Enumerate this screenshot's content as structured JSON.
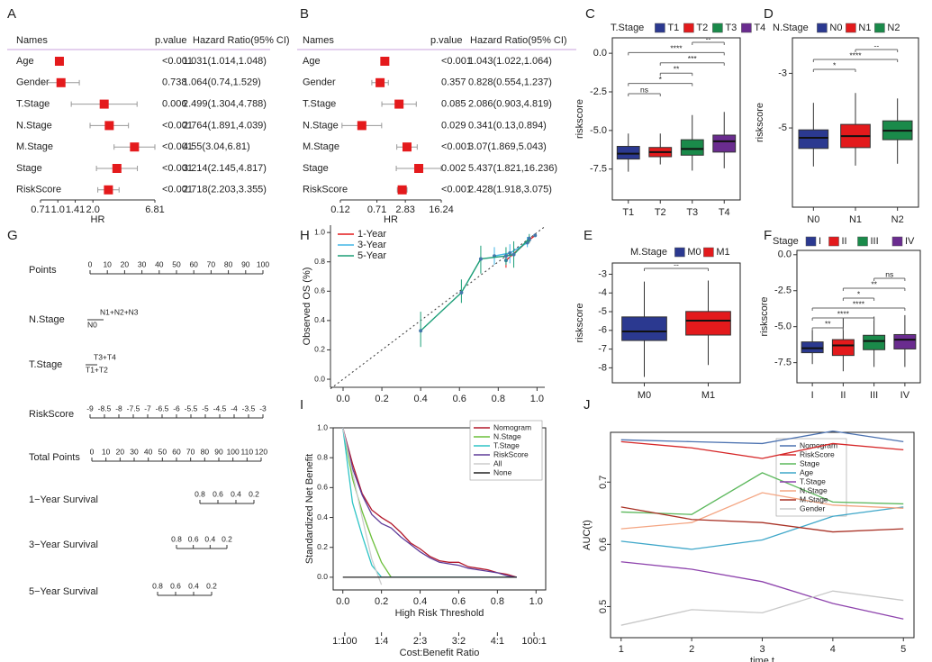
{
  "chart_data": [
    {
      "type": "forest",
      "panel": "A",
      "headers": [
        "Names",
        "p.value",
        "Hazard Ratio(95% CI)"
      ],
      "categories": [
        "Age",
        "Gender",
        "T.Stage",
        "N.Stage",
        "M.Stage",
        "Stage",
        "RiskScore"
      ],
      "p_values": [
        "<0.001",
        "0.738",
        "0.006",
        "<0.001",
        "<0.001",
        "<0.001",
        "<0.001"
      ],
      "values": [
        1.031,
        1.064,
        2.499,
        2.764,
        4.55,
        3.214,
        2.718
      ],
      "lower": [
        1.014,
        0.74,
        1.304,
        1.891,
        3.04,
        2.145,
        2.203
      ],
      "upper": [
        1.048,
        1.529,
        4.788,
        4.039,
        6.81,
        4.817,
        3.355
      ],
      "value_labels": [
        "1.031(1.014,1.048)",
        "1.064(0.74,1.529)",
        "2.499(1.304,4.788)",
        "2.764(1.891,4.039)",
        "4.55(3.04,6.81)",
        "3.214(2.145,4.817)",
        "2.718(2.203,3.355)"
      ],
      "xlabel": "HR",
      "log_x": true,
      "xlim": [
        0.71,
        6.81
      ],
      "xticks": [
        0.71,
        {
          "value": 1,
          "label": "1.0"
        },
        1.41,
        {
          "value": 2,
          "label": "2.0"
        },
        6.81
      ],
      "color": "#e41a1c"
    },
    {
      "type": "forest",
      "panel": "B",
      "headers": [
        "Names",
        "p.value",
        "Hazard Ratio(95% CI)"
      ],
      "categories": [
        "Age",
        "Gender",
        "T.Stage",
        "N.Stage",
        "M.Stage",
        "Stage",
        "RiskScore"
      ],
      "p_values": [
        "<0.001",
        "0.357",
        "0.085",
        "0.029",
        "<0.001",
        "0.002",
        "<0.001"
      ],
      "values": [
        1.043,
        0.828,
        2.086,
        0.341,
        3.07,
        5.437,
        2.428
      ],
      "lower": [
        1.022,
        0.554,
        0.903,
        0.13,
        1.869,
        1.821,
        1.918
      ],
      "upper": [
        1.064,
        1.237,
        4.819,
        0.894,
        5.043,
        16.236,
        3.075
      ],
      "value_labels": [
        "1.043(1.022,1.064)",
        "0.828(0.554,1.237)",
        "2.086(0.903,4.819)",
        "0.341(0.13,0.894)",
        "3.07(1.869,5.043)",
        "5.437(1.821,16.236)",
        "2.428(1.918,3.075)"
      ],
      "xlabel": "HR",
      "log_x": true,
      "xlim": [
        0.12,
        16.24
      ],
      "xticks": [
        0.12,
        0.71,
        2.83,
        16.24
      ],
      "color": "#e41a1c"
    },
    {
      "type": "box",
      "panel": "C",
      "legend_title": "T.Stage",
      "categories": [
        "T1",
        "T2",
        "T3",
        "T4"
      ],
      "colors": [
        "#2b3990",
        "#e31a1c",
        "#1a8a4a",
        "#6a2c8f"
      ],
      "min": [
        -7.67,
        -7.2,
        -7.6,
        -7.45
      ],
      "q1": [
        -6.85,
        -6.7,
        -6.6,
        -6.4
      ],
      "median": [
        -6.5,
        -6.4,
        -6.2,
        -5.7
      ],
      "q3": [
        -6.03,
        -6.1,
        -5.6,
        -5.3
      ],
      "max": [
        -5.2,
        -5.2,
        -4.0,
        -3.8
      ],
      "ylabel": "riskscore",
      "ylim": [
        -9.5,
        1.0
      ],
      "yticks": [
        -7.5,
        {
          "value": -5,
          "label": "-5.0"
        },
        -2.5,
        {
          "value": 0,
          "label": "0.0"
        }
      ],
      "brackets": [
        {
          "pair": [
            "T1",
            "T2"
          ],
          "label": "ns"
        },
        {
          "pair": [
            "T1",
            "T3"
          ],
          "label": "*"
        },
        {
          "pair": [
            "T2",
            "T3"
          ],
          "label": "**"
        },
        {
          "pair": [
            "T2",
            "T4"
          ],
          "label": "***"
        },
        {
          "pair": [
            "T1",
            "T4"
          ],
          "label": "****"
        },
        {
          "pair": [
            "T3",
            "T4"
          ],
          "label": "--"
        }
      ]
    },
    {
      "type": "box",
      "panel": "D",
      "legend_title": "N.Stage",
      "categories": [
        "N0",
        "N1",
        "N2"
      ],
      "colors": [
        "#2b3990",
        "#e31a1c",
        "#1a8a4a"
      ],
      "min": [
        -6.41,
        -6.38,
        -6.31
      ],
      "q1": [
        -5.75,
        -5.72,
        -5.43
      ],
      "median": [
        -5.36,
        -5.3,
        -5.1
      ],
      "q3": [
        -5.07,
        -4.87,
        -4.74
      ],
      "max": [
        -4.08,
        -3.72,
        -3.92
      ],
      "ylabel": "riskscore",
      "ylim": [
        -7.9,
        -1.7
      ],
      "yticks": [
        -5,
        -3
      ],
      "brackets": [
        {
          "pair": [
            "N0",
            "N1"
          ],
          "label": "*"
        },
        {
          "pair": [
            "N0",
            "N2"
          ],
          "label": "****"
        },
        {
          "pair": [
            "N1",
            "N2"
          ],
          "label": "--"
        }
      ]
    },
    {
      "type": "box",
      "panel": "E",
      "legend_title": "M.Stage",
      "categories": [
        "M0",
        "M1"
      ],
      "colors": [
        "#2b3990",
        "#e31a1c"
      ],
      "min": [
        -8.49,
        -7.85
      ],
      "q1": [
        -6.54,
        -6.25
      ],
      "median": [
        -6.06,
        -5.48
      ],
      "q3": [
        -5.28,
        -4.99
      ],
      "max": [
        -3.39,
        -3.34
      ],
      "ylabel": "riskscore",
      "ylim": [
        -8.8,
        -2.4
      ],
      "yticks": [
        -8,
        -7,
        -6,
        -5,
        -4,
        -3
      ],
      "brackets": [
        {
          "pair": [
            "M0",
            "M1"
          ],
          "label": "--"
        }
      ]
    },
    {
      "type": "box",
      "panel": "F",
      "legend_title": "Stage",
      "categories": [
        "I",
        "II",
        "III",
        "IV"
      ],
      "colors": [
        "#2b3990",
        "#e31a1c",
        "#1a8a4a",
        "#6a2c8f"
      ],
      "min": [
        -7.6,
        -8.1,
        -7.8,
        -7.8
      ],
      "q1": [
        -6.81,
        -7.0,
        -6.6,
        -6.55
      ],
      "median": [
        -6.5,
        -6.3,
        -6.0,
        -5.9
      ],
      "q3": [
        -6.06,
        -5.9,
        -5.6,
        -5.55
      ],
      "max": [
        -5.25,
        -4.4,
        -4.3,
        -4.2
      ],
      "ylabel": "riskscore",
      "ylim": [
        -8.9,
        0.3
      ],
      "yticks": [
        -7.5,
        {
          "value": -5,
          "label": "-5.0"
        },
        -2.5,
        {
          "value": 0,
          "label": "0.0"
        }
      ],
      "brackets": [
        {
          "pair": [
            "I",
            "II"
          ],
          "label": "**"
        },
        {
          "pair": [
            "I",
            "III"
          ],
          "label": "****"
        },
        {
          "pair": [
            "I",
            "IV"
          ],
          "label": "****"
        },
        {
          "pair": [
            "II",
            "III"
          ],
          "label": "*"
        },
        {
          "pair": [
            "II",
            "IV"
          ],
          "label": "**"
        },
        {
          "pair": [
            "III",
            "IV"
          ],
          "label": "ns"
        }
      ]
    },
    {
      "type": "nomogram",
      "panel": "G",
      "rows": [
        {
          "label": "Points",
          "xlim": [
            0,
            100
          ],
          "ticks": [
            0,
            10,
            20,
            30,
            40,
            50,
            60,
            70,
            80,
            90,
            100
          ]
        },
        {
          "label": "N.Stage",
          "levels": [
            "N0",
            "N1+N2+N3"
          ]
        },
        {
          "label": "T.Stage",
          "levels": [
            "T1+T2",
            "T3+T4"
          ]
        },
        {
          "label": "RiskScore",
          "xlim": [
            -9,
            -3
          ],
          "ticks": [
            -9,
            -8.5,
            -8,
            -7.5,
            -7,
            -6.5,
            -6,
            -5.5,
            -5,
            -4.5,
            -4,
            -3.5,
            -3
          ]
        },
        {
          "label": "Total Points",
          "xlim": [
            0,
            120
          ],
          "ticks": [
            0,
            10,
            20,
            30,
            40,
            50,
            60,
            70,
            80,
            90,
            100,
            110,
            120
          ]
        },
        {
          "label": "1−Year Survival",
          "xlim": [
            0.8,
            0.2
          ],
          "ticks": [
            0.8,
            0.6,
            0.4,
            0.2
          ]
        },
        {
          "label": "3−Year Survival",
          "xlim": [
            0.8,
            0.2
          ],
          "ticks": [
            0.8,
            0.6,
            0.4,
            0.2
          ]
        },
        {
          "label": "5−Year Survival",
          "xlim": [
            0.8,
            0.2
          ],
          "ticks": [
            0.8,
            0.6,
            0.4,
            0.2
          ]
        }
      ]
    },
    {
      "type": "calibration",
      "panel": "H",
      "ylabel": "Observed OS (%)",
      "xlim": [
        -0.065,
        1.04
      ],
      "ylim": [
        -0.055,
        1.05
      ],
      "xticks": [
        {
          "value": 0,
          "label": "0.0"
        },
        0.2,
        0.4,
        0.6,
        0.8,
        {
          "value": 1,
          "label": "1.0"
        }
      ],
      "yticks": [
        {
          "value": 0,
          "label": "0.0"
        },
        0.2,
        0.4,
        0.6,
        0.8,
        {
          "value": 1,
          "label": "1.0"
        }
      ],
      "series": [
        {
          "name": "1-Year",
          "color": "#e41a1c",
          "x": [
            0.84,
            0.96,
            0.99
          ],
          "values": [
            0.81,
            0.95,
            0.98
          ],
          "lower": [
            0.76,
            0.93,
            0.97
          ],
          "upper": [
            0.86,
            0.97,
            0.99
          ]
        },
        {
          "name": "3-Year",
          "color": "#41b6e6",
          "x": [
            0.78,
            0.86,
            0.95
          ],
          "values": [
            0.84,
            0.86,
            0.93
          ],
          "lower": [
            0.78,
            0.79,
            0.9
          ],
          "upper": [
            0.9,
            0.92,
            0.97
          ]
        },
        {
          "name": "5-Year",
          "color": "#1b9e77",
          "x": [
            0.4,
            0.61,
            0.71,
            0.84,
            0.88,
            0.96
          ],
          "values": [
            0.33,
            0.59,
            0.82,
            0.84,
            0.85,
            0.96
          ],
          "lower": [
            0.22,
            0.52,
            0.72,
            0.78,
            0.76,
            0.93
          ],
          "upper": [
            0.46,
            0.68,
            0.91,
            0.9,
            0.94,
            0.99
          ]
        }
      ]
    },
    {
      "type": "line",
      "panel": "I",
      "xlabel": "High Risk Threshold",
      "ylabel": "Standardized Net Benefit",
      "x2label": "Cost:Benefit Ratio",
      "x": [
        0,
        0.05,
        0.1,
        0.15,
        0.2,
        0.25,
        0.3,
        0.35,
        0.4,
        0.45,
        0.5,
        0.55,
        0.6,
        0.65,
        0.7,
        0.75,
        0.8,
        0.85,
        0.9
      ],
      "series": [
        {
          "name": "Nomogram",
          "color": "#b2182b",
          "values": [
            1,
            0.76,
            0.56,
            0.45,
            0.4,
            0.36,
            0.3,
            0.23,
            0.19,
            0.14,
            0.11,
            0.1,
            0.1,
            0.07,
            0.06,
            0.05,
            0.03,
            0.02,
            0
          ]
        },
        {
          "name": "N.Stage",
          "color": "#6cbf3a",
          "values": [
            1,
            0.66,
            0.44,
            0.26,
            0.1,
            0,
            null,
            null,
            null,
            null,
            null,
            null,
            null,
            null,
            null,
            null,
            null,
            null,
            null
          ]
        },
        {
          "name": "T.Stage",
          "color": "#2ec4c6",
          "values": [
            1,
            0.5,
            0.28,
            0.08,
            0,
            0,
            0,
            0,
            0,
            0,
            0,
            0,
            0,
            0,
            0,
            0,
            0,
            0,
            0
          ]
        },
        {
          "name": "RiskScore",
          "color": "#5e3c99",
          "values": [
            1,
            0.73,
            0.55,
            0.42,
            0.36,
            0.33,
            0.27,
            0.22,
            0.17,
            0.13,
            0.1,
            0.09,
            0.08,
            0.06,
            0.05,
            0.04,
            0.03,
            0.01,
            0
          ]
        },
        {
          "name": "All",
          "color": "#cccccc",
          "values": [
            1,
            0.7,
            0.4,
            0.12,
            -0.05,
            null,
            null,
            null,
            null,
            null,
            null,
            null,
            null,
            null,
            null,
            null,
            null,
            null,
            null
          ]
        },
        {
          "name": "None",
          "color": "#222222",
          "values": [
            0,
            0,
            0,
            0,
            0,
            0,
            0,
            0,
            0,
            0,
            0,
            0,
            0,
            0,
            0,
            0,
            0,
            0,
            0
          ]
        }
      ],
      "xlim": [
        -0.05,
        1.05
      ],
      "ylim": [
        -0.085,
        1.0
      ],
      "xticks": [
        {
          "value": 0,
          "label": "0.0"
        },
        0.2,
        0.4,
        0.6,
        0.8,
        {
          "value": 1,
          "label": "1.0"
        }
      ],
      "yticks": [
        {
          "value": 0,
          "label": "0.0"
        },
        0.2,
        0.4,
        0.6,
        0.8,
        {
          "value": 1,
          "label": "1.0"
        }
      ],
      "x2ticks": [
        {
          "value": 0.01,
          "label": "1:100"
        },
        {
          "value": 0.2,
          "label": "1:4"
        },
        {
          "value": 0.4,
          "label": "2:3"
        },
        {
          "value": 0.6,
          "label": "3:2"
        },
        {
          "value": 0.8,
          "label": "4:1"
        },
        {
          "value": 0.99,
          "label": "100:1"
        }
      ]
    },
    {
      "type": "line",
      "panel": "J",
      "xlabel": "time t",
      "ylabel": "AUC(t)",
      "x": [
        1,
        2,
        3,
        4,
        5
      ],
      "series": [
        {
          "name": "Nomogram",
          "color": "#4c72b0",
          "values": [
            0.768,
            0.765,
            0.762,
            0.782,
            0.765
          ]
        },
        {
          "name": "RiskScore",
          "color": "#d62728",
          "values": [
            0.765,
            0.755,
            0.738,
            0.762,
            0.752
          ]
        },
        {
          "name": "Stage",
          "color": "#5cb85c",
          "values": [
            0.652,
            0.648,
            0.715,
            0.668,
            0.665
          ]
        },
        {
          "name": "Age",
          "color": "#3fa7c9",
          "values": [
            0.605,
            0.592,
            0.607,
            0.645,
            0.66
          ]
        },
        {
          "name": "T.Stage",
          "color": "#8e44ad",
          "values": [
            0.572,
            0.56,
            0.54,
            0.505,
            0.48
          ]
        },
        {
          "name": "N.Stage",
          "color": "#f4a582",
          "values": [
            0.625,
            0.635,
            0.683,
            0.663,
            0.658
          ]
        },
        {
          "name": "M.Stage",
          "color": "#a93226",
          "values": [
            0.66,
            0.64,
            0.635,
            0.62,
            0.625
          ]
        },
        {
          "name": "Gender",
          "color": "#c8c8c8",
          "values": [
            0.47,
            0.495,
            0.49,
            0.525,
            0.51
          ]
        }
      ],
      "xlim": [
        0.85,
        5.15
      ],
      "ylim": [
        0.45,
        0.78
      ],
      "xticks": [
        1,
        2,
        3,
        4,
        5
      ],
      "yticks": [
        0.5,
        0.6,
        0.7
      ]
    }
  ]
}
